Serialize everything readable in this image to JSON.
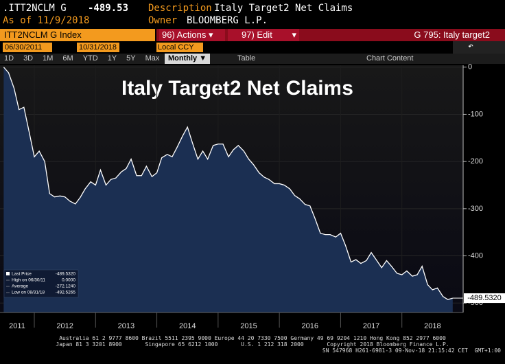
{
  "header": {
    "ticker": ".ITT2NCLM G",
    "price": "-489.53",
    "description_label": "Description",
    "description": "Italy Target2 Net Claims",
    "as_of": "As of 11/9/2018",
    "owner_label": "Owner",
    "owner": "BLOOMBERG L.P.",
    "security": "ITT2NCLM G Index",
    "actions": "96) Actions",
    "edit": "97) Edit",
    "page": "G 795: Italy target2",
    "start_date": "06/30/2011",
    "end_date": "10/31/2018",
    "currency": "Local CCY",
    "periods": [
      "1D",
      "3D",
      "1M",
      "6M",
      "YTD",
      "1Y",
      "5Y",
      "Max"
    ],
    "frequency": "Monthly",
    "table": "Table",
    "chart_content": "Chart Content"
  },
  "chart_data": {
    "type": "area",
    "title": "Italy Target2 Net Claims",
    "x": [
      2011.5,
      2011.58,
      2011.67,
      2011.75,
      2011.83,
      2011.92,
      2012.0,
      2012.08,
      2012.17,
      2012.25,
      2012.33,
      2012.42,
      2012.5,
      2012.58,
      2012.67,
      2012.75,
      2012.83,
      2012.92,
      2013.0,
      2013.08,
      2013.17,
      2013.25,
      2013.33,
      2013.42,
      2013.5,
      2013.58,
      2013.67,
      2013.75,
      2013.83,
      2013.92,
      2014.0,
      2014.08,
      2014.17,
      2014.25,
      2014.33,
      2014.42,
      2014.5,
      2014.58,
      2014.67,
      2014.75,
      2014.83,
      2014.92,
      2015.0,
      2015.08,
      2015.17,
      2015.25,
      2015.33,
      2015.42,
      2015.5,
      2015.58,
      2015.67,
      2015.75,
      2015.83,
      2015.92,
      2016.0,
      2016.08,
      2016.17,
      2016.25,
      2016.33,
      2016.42,
      2016.5,
      2016.58,
      2016.67,
      2016.75,
      2016.83,
      2016.92,
      2017.0,
      2017.08,
      2017.17,
      2017.25,
      2017.33,
      2017.42,
      2017.5,
      2017.58,
      2017.67,
      2017.75,
      2017.83,
      2017.92,
      2018.0,
      2018.08,
      2018.17,
      2018.25,
      2018.33,
      2018.42,
      2018.5,
      2018.58,
      2018.67,
      2018.75,
      2018.83
    ],
    "series": [
      {
        "name": "Last Price",
        "color": "#ffffff",
        "values": [
          0,
          -12,
          -45,
          -90,
          -85,
          -140,
          -190,
          -178,
          -200,
          -268,
          -275,
          -273,
          -275,
          -284,
          -290,
          -276,
          -258,
          -243,
          -250,
          -218,
          -250,
          -238,
          -235,
          -222,
          -215,
          -195,
          -230,
          -230,
          -210,
          -232,
          -224,
          -192,
          -185,
          -190,
          -170,
          -146,
          -127,
          -160,
          -195,
          -178,
          -195,
          -166,
          -163,
          -163,
          -190,
          -175,
          -166,
          -178,
          -195,
          -207,
          -224,
          -233,
          -238,
          -247,
          -247,
          -250,
          -258,
          -272,
          -279,
          -291,
          -294,
          -320,
          -352,
          -355,
          -355,
          -360,
          -352,
          -378,
          -413,
          -408,
          -416,
          -410,
          -393,
          -408,
          -425,
          -410,
          -422,
          -437,
          -440,
          -432,
          -443,
          -440,
          -422,
          -461,
          -472,
          -468,
          -486,
          -492.5265,
          -489.532
        ]
      }
    ],
    "last_value_label": "-489.5320",
    "fill_color": "#1b2f52",
    "xlim": [
      2011.44,
      2019.0
    ],
    "xticks": [
      2011,
      2012,
      2013,
      2014,
      2015,
      2016,
      2017,
      2018
    ],
    "ylim": [
      -520,
      4
    ],
    "yticks": [
      0,
      -100,
      -200,
      -300,
      -400,
      -500
    ],
    "legend": {
      "rows": [
        [
          "Last Price",
          "-489.5320"
        ],
        [
          "High on 06/30/11",
          "0.0000"
        ],
        [
          "Average",
          "-272.1240"
        ],
        [
          "Low on 08/31/18",
          "-492.5265"
        ]
      ],
      "position": "lower left"
    }
  },
  "footer": {
    "lines": [
      "Australia 61 2 9777 8600 Brazil 5511 2395 9000 Europe 44 20 7330 7500 Germany 49 69 9204 1210 Hong Kong 852 2977 6000",
      "Japan 81 3 3201 8900       Singapore 65 6212 1000       U.S. 1 212 318 2000       Copyright 2018 Bloomberg Finance L.P.",
      "SN 547968 H261-6981-3 09-Nov-18 21:15:42 CET  GMT+1:00"
    ]
  }
}
